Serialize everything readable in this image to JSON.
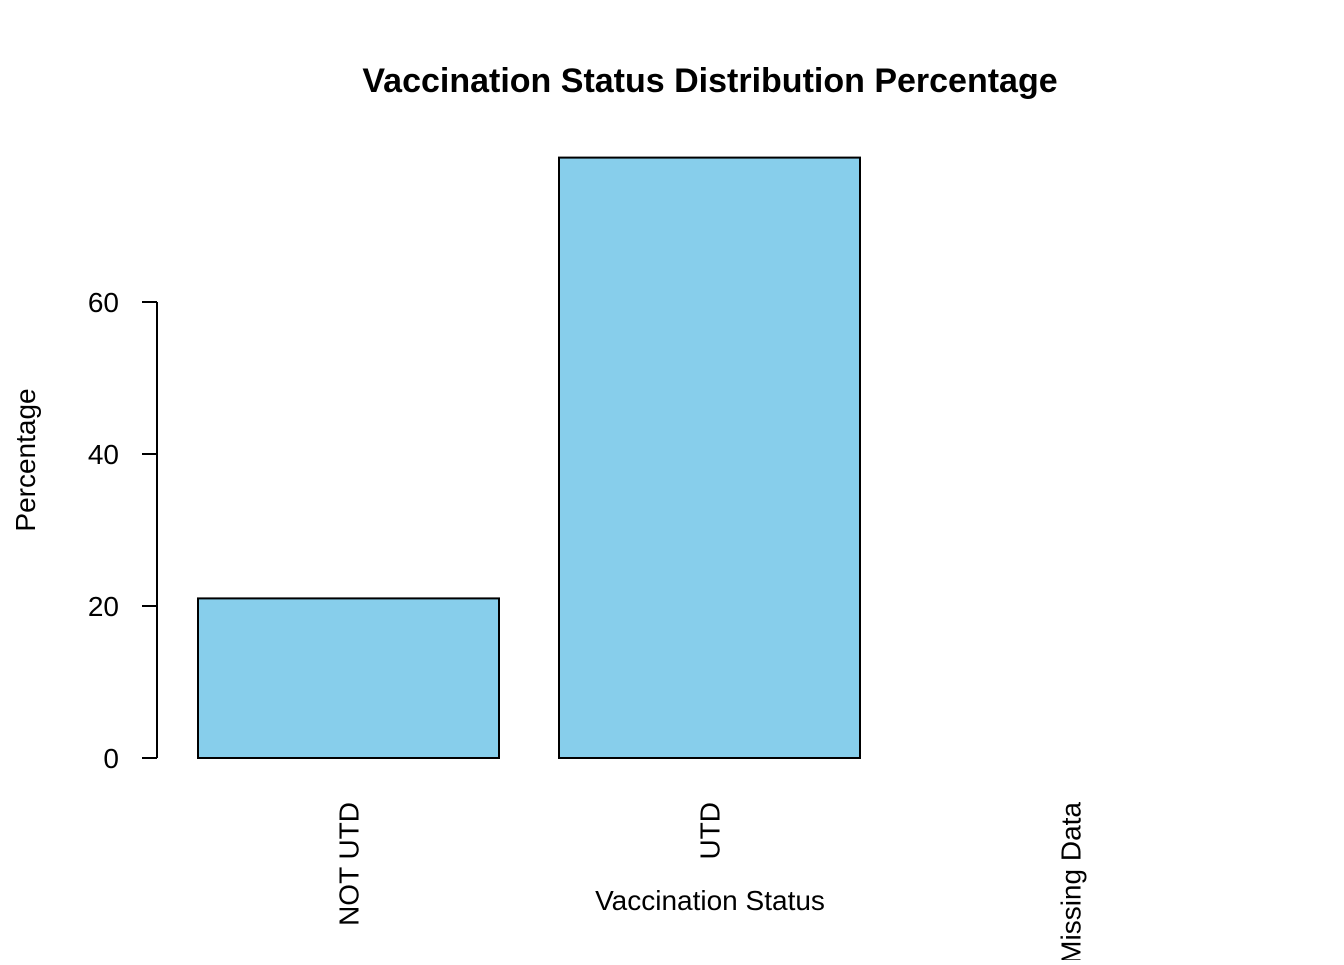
{
  "chart_data": {
    "type": "bar",
    "title": "Vaccination Status Distribution Percentage",
    "xlabel": "Vaccination Status",
    "ylabel": "Percentage",
    "categories": [
      "NOT UTD",
      "UTD",
      "Missing Data"
    ],
    "values": [
      21,
      79,
      0
    ],
    "yticks": [
      0,
      20,
      40,
      60
    ],
    "ytick_labels": [
      "0",
      "20",
      "40",
      "60"
    ],
    "ylim": [
      0,
      79
    ],
    "bar_color": "#87CEEB",
    "bar_border_color": "#000000",
    "grid": false,
    "legend": "none"
  }
}
